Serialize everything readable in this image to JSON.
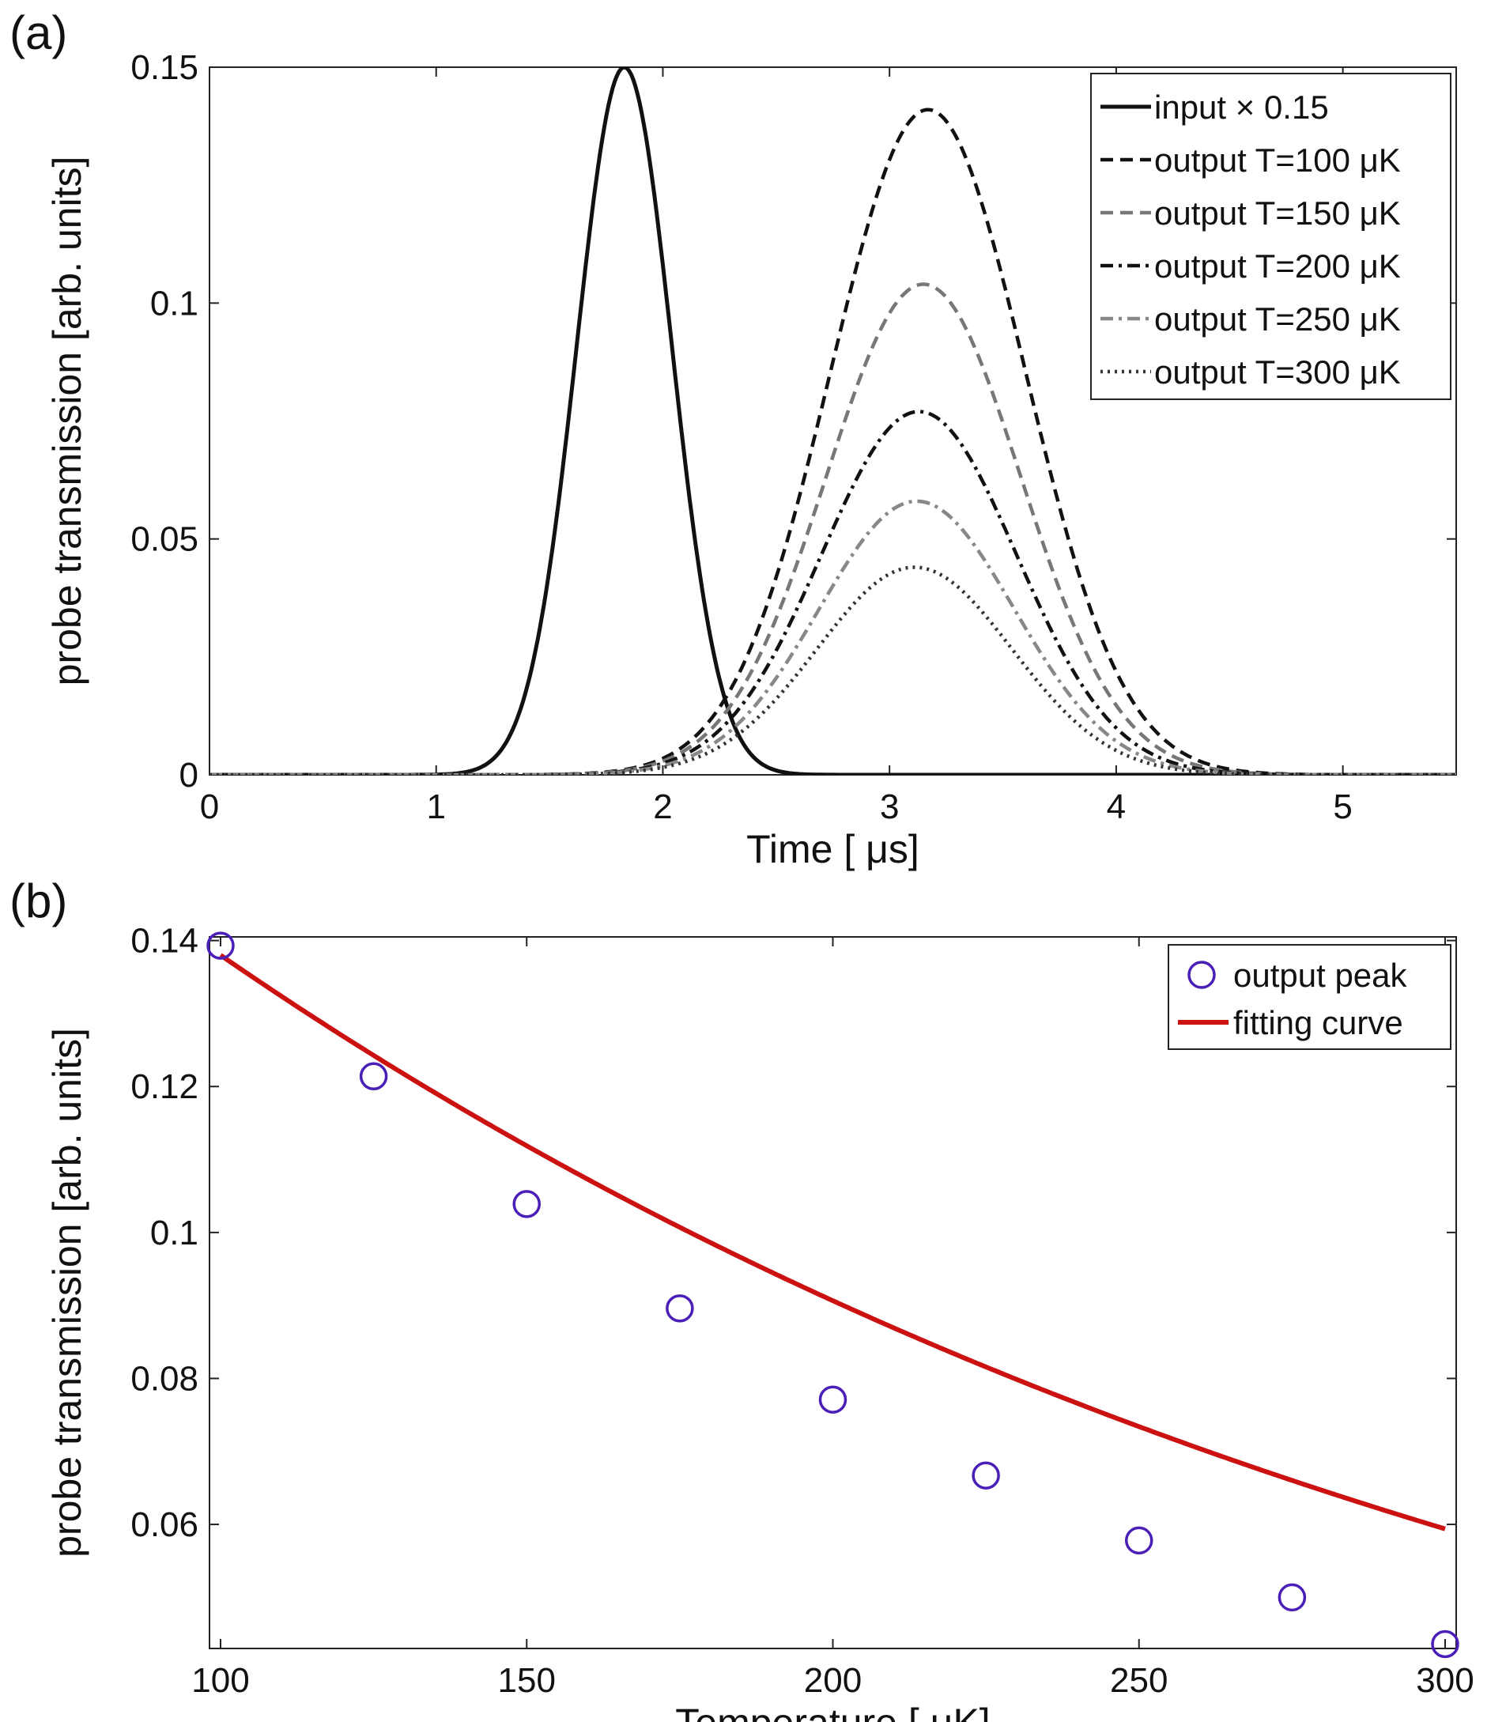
{
  "chart_data": [
    {
      "panel_label": "(a)",
      "type": "line",
      "xlabel": "Time [ μs]",
      "ylabel": "probe transmission [arb. units]",
      "xlim": [
        0,
        5.5
      ],
      "ylim": [
        0,
        0.15
      ],
      "xticks": [
        0,
        1,
        2,
        3,
        4,
        5
      ],
      "xtick_labels": [
        "0",
        "1",
        "2",
        "3",
        "4",
        "5"
      ],
      "yticks": [
        0,
        0.05,
        0.1,
        0.15
      ],
      "ytick_labels": [
        "0",
        "0.05",
        "0.1",
        "0.15"
      ],
      "legend_position": "top-right",
      "series": [
        {
          "name": "input × 0.15",
          "shape": "gaussian",
          "peak": 0.15,
          "center": 1.83,
          "sigma": 0.21,
          "color": "#111111",
          "dash": "solid"
        },
        {
          "name": "output T=100 μK",
          "shape": "gaussian",
          "peak": 0.141,
          "center": 3.17,
          "sigma": 0.43,
          "color": "#111111",
          "dash": "dashed"
        },
        {
          "name": "output T=150 μK",
          "shape": "gaussian",
          "peak": 0.104,
          "center": 3.15,
          "sigma": 0.43,
          "color": "#777777",
          "dash": "dashed"
        },
        {
          "name": "output T=200 μK",
          "shape": "gaussian",
          "peak": 0.077,
          "center": 3.13,
          "sigma": 0.43,
          "color": "#111111",
          "dash": "dashdot"
        },
        {
          "name": "output T=250 μK",
          "shape": "gaussian",
          "peak": 0.058,
          "center": 3.12,
          "sigma": 0.43,
          "color": "#888888",
          "dash": "dashdot"
        },
        {
          "name": "output T=300 μK",
          "shape": "gaussian",
          "peak": 0.044,
          "center": 3.11,
          "sigma": 0.43,
          "color": "#333333",
          "dash": "dotted"
        }
      ]
    },
    {
      "panel_label": "(b)",
      "type": "scatter",
      "xlabel": "Temperature [ μK]",
      "ylabel": "probe transmission [arb. units]",
      "xlim": [
        100,
        300
      ],
      "ylim": [
        0.043,
        0.1405
      ],
      "xticks": [
        100,
        150,
        200,
        250,
        300
      ],
      "xtick_labels": [
        "100",
        "150",
        "200",
        "250",
        "300"
      ],
      "yticks": [
        0.06,
        0.08,
        0.1,
        0.12,
        0.14
      ],
      "ytick_labels": [
        "0.06",
        "0.08",
        "0.1",
        "0.12",
        "0.14"
      ],
      "legend_position": "top-right",
      "series": [
        {
          "name": "output peak",
          "kind": "markers",
          "color": "#4a1fb8",
          "x": [
            100,
            125,
            150,
            175,
            200,
            225,
            250,
            275,
            300
          ],
          "y": [
            0.1393,
            0.1214,
            0.1039,
            0.0896,
            0.0771,
            0.0667,
            0.0578,
            0.05,
            0.0436
          ]
        },
        {
          "name": "fitting curve",
          "kind": "line",
          "color": "#cc1111",
          "model": "a*exp(-b*(x-100))+c",
          "a": 0.1394,
          "b": 0.00415,
          "c": -0.0014
        }
      ]
    }
  ]
}
